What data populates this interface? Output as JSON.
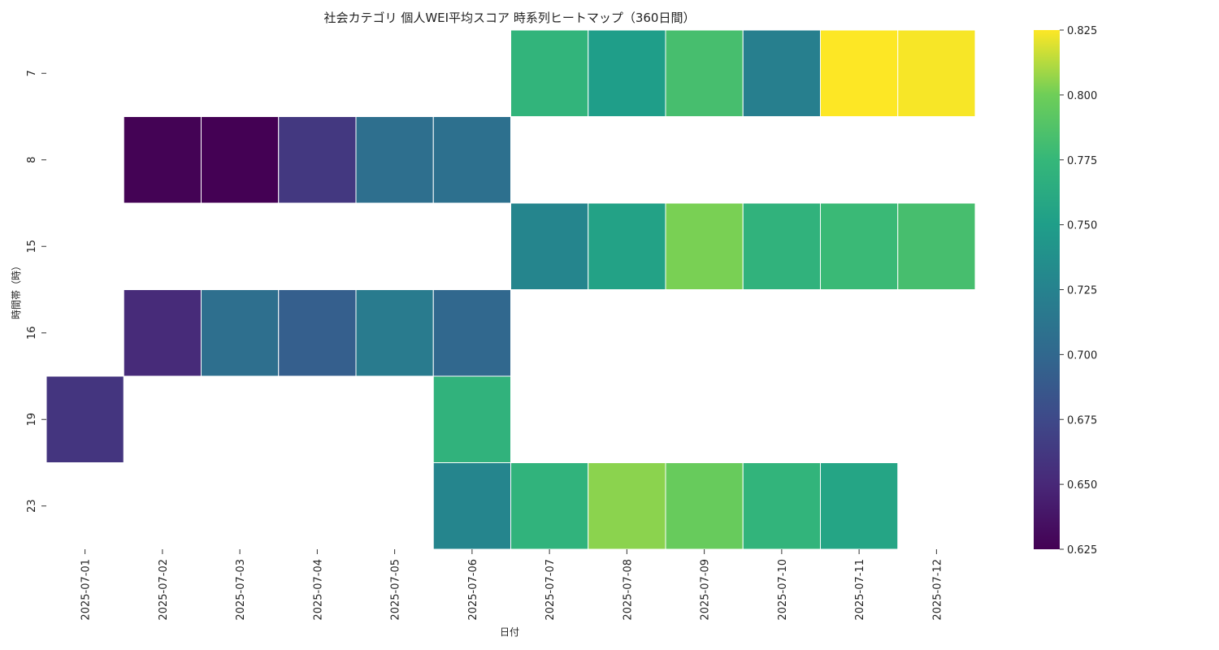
{
  "chart_data": {
    "type": "heatmap",
    "title": "社会カテゴリ 個人WEI平均スコア 時系列ヒートマップ（360日間）",
    "xlabel": "日付",
    "ylabel": "時間帯（時）",
    "x": [
      "2025-07-01",
      "2025-07-02",
      "2025-07-03",
      "2025-07-04",
      "2025-07-05",
      "2025-07-06",
      "2025-07-07",
      "2025-07-08",
      "2025-07-09",
      "2025-07-10",
      "2025-07-11",
      "2025-07-12"
    ],
    "y": [
      "7",
      "8",
      "15",
      "16",
      "19",
      "23"
    ],
    "values": [
      [
        null,
        null,
        null,
        null,
        null,
        null,
        0.772,
        0.75,
        0.783,
        0.722,
        0.825,
        0.824
      ],
      [
        null,
        0.626,
        0.625,
        0.662,
        0.707,
        0.708,
        null,
        null,
        null,
        null,
        null,
        null
      ],
      [
        null,
        null,
        null,
        null,
        null,
        null,
        0.728,
        0.754,
        0.802,
        0.77,
        0.777,
        0.783
      ],
      [
        null,
        0.652,
        0.707,
        0.693,
        0.718,
        0.7,
        null,
        null,
        null,
        null,
        null,
        null
      ],
      [
        0.66,
        null,
        null,
        null,
        null,
        0.77,
        null,
        null,
        null,
        null,
        null,
        null
      ],
      [
        null,
        null,
        null,
        null,
        null,
        0.728,
        0.771,
        0.805,
        0.797,
        0.772,
        0.757,
        null
      ]
    ],
    "colorbar": {
      "colormap": "viridis",
      "range": [
        0.625,
        0.825
      ],
      "ticks": [
        "0.625",
        "0.650",
        "0.675",
        "0.700",
        "0.725",
        "0.750",
        "0.775",
        "0.800",
        "0.825"
      ]
    },
    "grid": false
  }
}
